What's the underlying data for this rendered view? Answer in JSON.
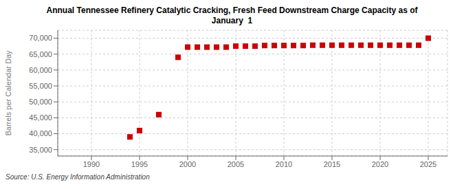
{
  "chart_data": {
    "type": "scatter",
    "title": "Annual Tennessee Refinery Catalytic Cracking, Fresh Feed Downstream Charge Capacity as of\nJanuary  1",
    "ylabel": "Barrels per Calendar Day",
    "annotation": "Source: U.S. Energy Information Administration",
    "x": [
      1994,
      1995,
      1997,
      1999,
      2000,
      2001,
      2002,
      2003,
      2004,
      2005,
      2006,
      2007,
      2008,
      2009,
      2010,
      2011,
      2012,
      2013,
      2014,
      2015,
      2016,
      2017,
      2018,
      2019,
      2020,
      2021,
      2022,
      2023,
      2024,
      2025
    ],
    "values": [
      39000,
      41000,
      46000,
      64000,
      67200,
      67200,
      67200,
      67200,
      67200,
      67500,
      67500,
      67500,
      67700,
      67700,
      67700,
      67700,
      67700,
      67800,
      67800,
      67800,
      67800,
      67800,
      67800,
      67800,
      67800,
      67800,
      67800,
      67800,
      67800,
      70000
    ],
    "color": "#cc0000",
    "marker": "square",
    "xlim": [
      1986.5,
      2027
    ],
    "ylim": [
      33000,
      72500
    ],
    "xticks": [
      1990,
      1995,
      2000,
      2005,
      2010,
      2015,
      2020,
      2025
    ],
    "yticks": [
      {
        "value": 35000,
        "label": "35,000"
      },
      {
        "value": 40000,
        "label": "40,000"
      },
      {
        "value": 45000,
        "label": "45,000"
      },
      {
        "value": 50000,
        "label": "50,000"
      },
      {
        "value": 55000,
        "label": "55,000"
      },
      {
        "value": 60000,
        "label": "60,000"
      },
      {
        "value": 65000,
        "label": "65,000"
      },
      {
        "value": 70000,
        "label": "70,000"
      }
    ],
    "grid": true
  }
}
